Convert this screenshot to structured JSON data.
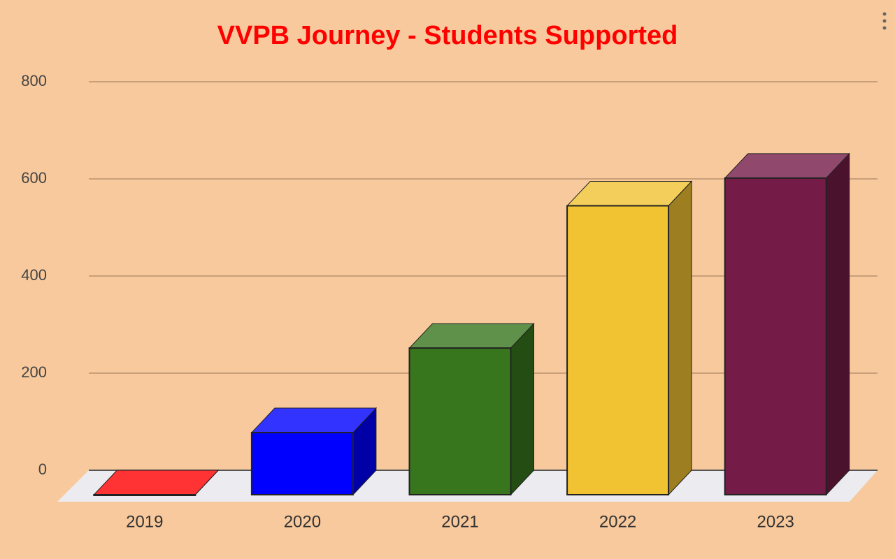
{
  "chart_data": {
    "type": "bar3d",
    "title": "VVPB Journey - Students Supported",
    "categories": [
      "2019",
      "2020",
      "2021",
      "2022",
      "2023"
    ],
    "values": [
      0,
      128,
      302,
      595,
      652
    ],
    "colors": [
      "#ff0000",
      "#0000ff",
      "#38761d",
      "#f1c232",
      "#741b47"
    ],
    "ylim": [
      0,
      800
    ],
    "yticks": [
      0,
      200,
      400,
      600,
      800
    ],
    "grid": true
  }
}
